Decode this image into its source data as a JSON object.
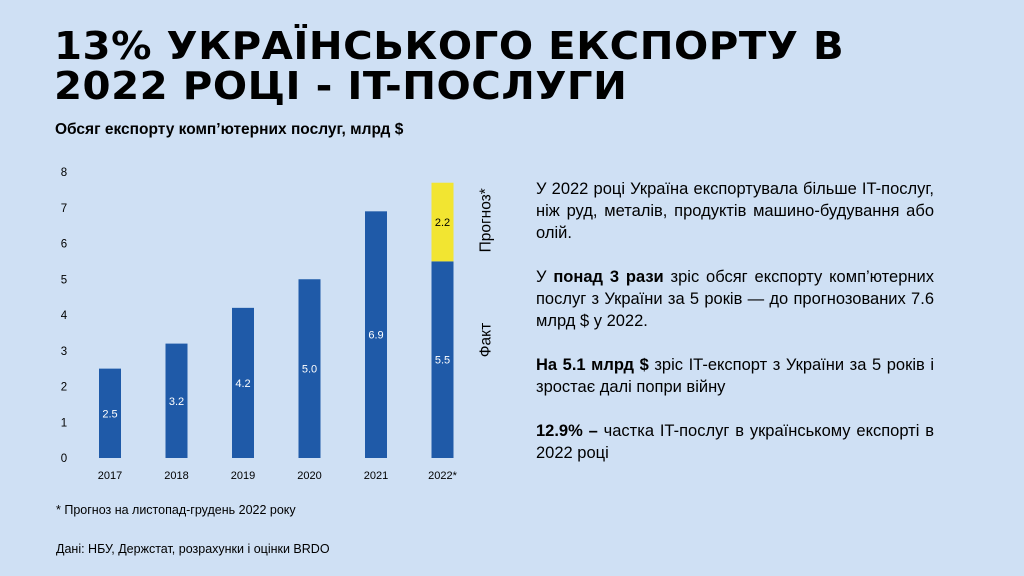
{
  "title": {
    "line1": "13% УКРАЇНСЬКОГО ЕКСПОРТУ В",
    "line2": "2022 РОЦІ - IT-ПОСЛУГИ"
  },
  "chart_title": "Обсяг експорту комп’ютерних послуг, млрд $",
  "chart_data": {
    "type": "bar",
    "stacked": true,
    "categories": [
      "2017",
      "2018",
      "2019",
      "2020",
      "2021",
      "2022*"
    ],
    "series": [
      {
        "name": "Факт",
        "values": [
          2.5,
          3.2,
          4.2,
          5.0,
          6.9,
          5.5
        ],
        "labels": [
          "2.5",
          "3.2",
          "4.2",
          "5.0",
          "6.9",
          "5.5"
        ],
        "color": "#1f5aa8"
      },
      {
        "name": "Прогноз*",
        "values": [
          null,
          null,
          null,
          null,
          null,
          2.2
        ],
        "labels": [
          "",
          "",
          "",
          "",
          "",
          "2.2"
        ],
        "color": "#f2e531"
      }
    ],
    "ylim": [
      0,
      8
    ],
    "yticks": [
      "0",
      "1",
      "2",
      "3",
      "4",
      "5",
      "6",
      "7",
      "8"
    ],
    "grid": false,
    "legend": "right, rotated labels beside last bar"
  },
  "footnote": "* Прогноз на листопад-грудень 2022 року",
  "source": "Дані: НБУ, Держстат, розрахунки і оцінки BRDO",
  "paragraphs": {
    "p1": "У 2022 році Україна експортувала більше IT-послуг, ніж руд, металів, продуктів машино-будування або олій.",
    "p2_pre": "У ",
    "p2_bold": "понад 3 рази",
    "p2_post": " зріс обсяг експорту комп’ютерних послуг з України за 5 років — до прогнозованих 7.6 млрд $ у 2022.",
    "p3_bold": "На 5.1 млрд $",
    "p3_post": " зріс IT-експорт з України за 5 років і зростає далі попри війну",
    "p4_bold": "12.9% –",
    "p4_post": " частка IT-послуг в українському експорті в 2022 році"
  }
}
